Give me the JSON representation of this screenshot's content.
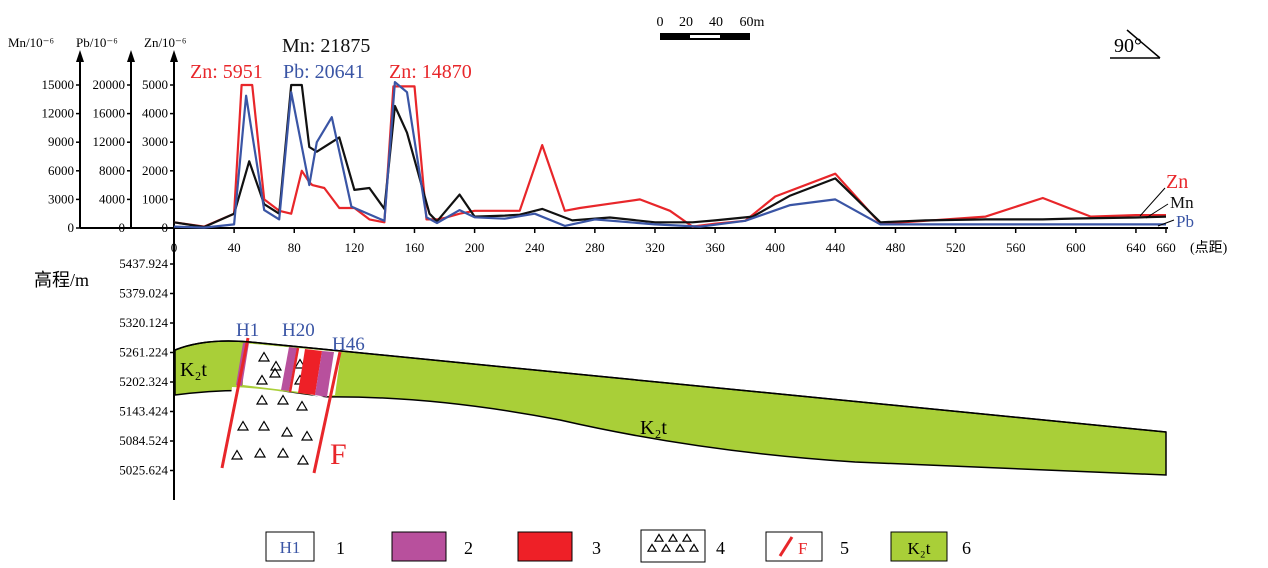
{
  "chart_data": {
    "type": "line",
    "x_label": "(点距)",
    "x_ticks": [
      0,
      40,
      80,
      120,
      160,
      200,
      240,
      280,
      320,
      360,
      400,
      440,
      480,
      520,
      560,
      600,
      640,
      660
    ],
    "axes": {
      "mn": {
        "label": "Mn/10⁻⁶",
        "ticks": [
          0,
          3000,
          6000,
          9000,
          12000,
          15000
        ],
        "range": [
          0,
          15000
        ]
      },
      "pb": {
        "label": "Pb/10⁻⁶",
        "ticks": [
          0,
          4000,
          8000,
          12000,
          16000,
          20000
        ],
        "range": [
          0,
          20000
        ]
      },
      "zn": {
        "label": "Zn/10⁻⁶",
        "ticks": [
          0,
          1000,
          2000,
          3000,
          4000,
          5000
        ],
        "range": [
          0,
          5000
        ]
      }
    },
    "series": [
      {
        "name": "Zn",
        "axis": "zn",
        "color": "#e8262a",
        "points": [
          [
            0,
            200
          ],
          [
            20,
            50
          ],
          [
            40,
            500
          ],
          [
            45,
            5000
          ],
          [
            52,
            5000
          ],
          [
            60,
            1000
          ],
          [
            70,
            600
          ],
          [
            78,
            500
          ],
          [
            85,
            2000
          ],
          [
            90,
            1600
          ],
          [
            92,
            1500
          ],
          [
            100,
            1400
          ],
          [
            110,
            700
          ],
          [
            120,
            700
          ],
          [
            130,
            300
          ],
          [
            140,
            200
          ],
          [
            146,
            4950
          ],
          [
            160,
            4950
          ],
          [
            168,
            300
          ],
          [
            175,
            300
          ],
          [
            180,
            350
          ],
          [
            190,
            500
          ],
          [
            200,
            600
          ],
          [
            210,
            600
          ],
          [
            220,
            600
          ],
          [
            230,
            600
          ],
          [
            245,
            2900
          ],
          [
            260,
            600
          ],
          [
            270,
            700
          ],
          [
            290,
            850
          ],
          [
            310,
            1000
          ],
          [
            330,
            600
          ],
          [
            345,
            50
          ],
          [
            360,
            150
          ],
          [
            380,
            250
          ],
          [
            400,
            1100
          ],
          [
            440,
            1900
          ],
          [
            470,
            150
          ],
          [
            500,
            250
          ],
          [
            540,
            400
          ],
          [
            578,
            1050
          ],
          [
            610,
            400
          ],
          [
            640,
            450
          ],
          [
            660,
            450
          ]
        ]
      },
      {
        "name": "Mn",
        "axis": "mn",
        "color": "#111111",
        "points": [
          [
            0,
            600
          ],
          [
            20,
            100
          ],
          [
            40,
            1500
          ],
          [
            50,
            7000
          ],
          [
            60,
            2500
          ],
          [
            70,
            1500
          ],
          [
            78,
            15000
          ],
          [
            85,
            15000
          ],
          [
            90,
            8500
          ],
          [
            95,
            8000
          ],
          [
            110,
            9500
          ],
          [
            120,
            4000
          ],
          [
            130,
            4200
          ],
          [
            140,
            2000
          ],
          [
            147,
            12800
          ],
          [
            155,
            10000
          ],
          [
            170,
            1500
          ],
          [
            175,
            700
          ],
          [
            190,
            3500
          ],
          [
            200,
            1200
          ],
          [
            220,
            1300
          ],
          [
            230,
            1400
          ],
          [
            245,
            2000
          ],
          [
            265,
            800
          ],
          [
            290,
            1100
          ],
          [
            320,
            600
          ],
          [
            345,
            600
          ],
          [
            360,
            800
          ],
          [
            385,
            1200
          ],
          [
            410,
            3400
          ],
          [
            440,
            5200
          ],
          [
            470,
            600
          ],
          [
            500,
            800
          ],
          [
            540,
            900
          ],
          [
            578,
            900
          ],
          [
            600,
            1000
          ],
          [
            640,
            1100
          ],
          [
            660,
            1200
          ]
        ]
      },
      {
        "name": "Pb",
        "axis": "pb",
        "color": "#3a55a5",
        "points": [
          [
            0,
            200
          ],
          [
            20,
            50
          ],
          [
            40,
            500
          ],
          [
            48,
            18500
          ],
          [
            60,
            2500
          ],
          [
            70,
            1200
          ],
          [
            78,
            19000
          ],
          [
            90,
            6000
          ],
          [
            95,
            12000
          ],
          [
            105,
            15500
          ],
          [
            118,
            3000
          ],
          [
            140,
            1000
          ],
          [
            147,
            20400
          ],
          [
            155,
            19000
          ],
          [
            168,
            1500
          ],
          [
            175,
            700
          ],
          [
            190,
            2500
          ],
          [
            200,
            1500
          ],
          [
            220,
            1300
          ],
          [
            240,
            2000
          ],
          [
            260,
            300
          ],
          [
            280,
            1200
          ],
          [
            320,
            500
          ],
          [
            350,
            200
          ],
          [
            380,
            1000
          ],
          [
            410,
            3200
          ],
          [
            440,
            4000
          ],
          [
            470,
            500
          ],
          [
            500,
            500
          ],
          [
            540,
            500
          ],
          [
            600,
            500
          ],
          [
            640,
            500
          ],
          [
            660,
            500
          ]
        ]
      }
    ],
    "peak_labels": [
      {
        "text": "Zn: 5951",
        "series": "Zn"
      },
      {
        "text": "Mn: 21875",
        "series": "Mn"
      },
      {
        "text": "Pb: 20641",
        "series": "Pb"
      },
      {
        "text": "Zn: 14870",
        "series": "Zn"
      }
    ],
    "legend_series": [
      "Zn",
      "Mn",
      "Pb"
    ]
  },
  "elevation": {
    "label": "高程/m",
    "ticks": [
      "5437.924",
      "5379.024",
      "5320.124",
      "5261.224",
      "5202.324",
      "5143.424",
      "5084.524",
      "5025.624"
    ]
  },
  "scale_bar": {
    "labels": [
      "0",
      "20",
      "40",
      "60m"
    ]
  },
  "orientation": "90°",
  "section": {
    "formation_label": "K₂t",
    "holes": [
      "H1",
      "H20",
      "H46"
    ],
    "fault_label": "F"
  },
  "legend": [
    {
      "num": "1",
      "symbol_text": "H1"
    },
    {
      "num": "2"
    },
    {
      "num": "3"
    },
    {
      "num": "4"
    },
    {
      "num": "5",
      "symbol_text": "F"
    },
    {
      "num": "6",
      "symbol_text": "K₂t"
    }
  ],
  "colors": {
    "zn": "#e8262a",
    "mn": "#111111",
    "pb": "#3a55a5",
    "formation": "#a9cf38",
    "ore_magenta": "#b8509d",
    "ore_red": "#ee2027",
    "fault": "#e8262a",
    "hole_label": "#3a55a5"
  }
}
